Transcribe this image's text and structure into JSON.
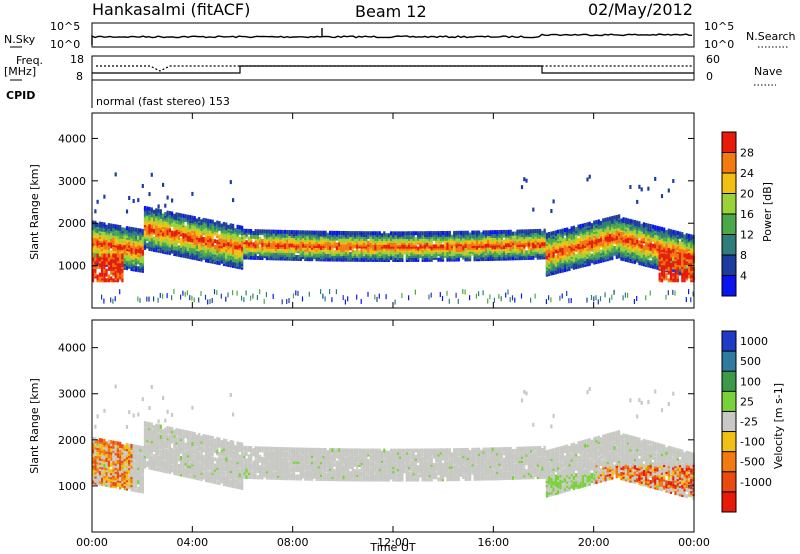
{
  "header": {
    "station": "Hankasalmi (fitACF)",
    "beam": "Beam 12",
    "date": "02/May/2012"
  },
  "params": {
    "nsky_label": "N.Sky",
    "nsky_ticks": [
      "10^5",
      "10^0"
    ],
    "nsearch_label": "N.Search",
    "nsearch_ticks": [
      "10^5",
      "10^0"
    ],
    "freq_label_1": "Freq.",
    "freq_label_2": "[MHz]",
    "freq_ticks": [
      "18",
      "8"
    ],
    "nave_label": "Nave",
    "nave_ticks": [
      "60",
      "0"
    ],
    "cpid_label": "CPID",
    "cpid_value": "normal (fast stereo) 153"
  },
  "chart_data": [
    {
      "type": "heatmap",
      "name": "power",
      "ylabel": "Slant Range [km]",
      "xlabel": "",
      "ylim": [
        0,
        4600
      ],
      "yticks": [
        "1000",
        "2000",
        "3000",
        "4000"
      ],
      "xlim_hours": [
        0,
        24
      ],
      "colorbar": {
        "label": "Power [dB]",
        "range": [
          0,
          32
        ],
        "ticks": [
          "4",
          "8",
          "12",
          "16",
          "20",
          "24",
          "28"
        ],
        "colors": [
          "#0a14f0",
          "#1e3ca0",
          "#2e7d7a",
          "#4aa84a",
          "#9ad23a",
          "#f2c012",
          "#f27a10",
          "#e81a0a"
        ]
      }
    },
    {
      "type": "heatmap",
      "name": "velocity",
      "ylabel": "Slant Range [km]",
      "xlabel": "Time UT",
      "ylim": [
        0,
        4600
      ],
      "yticks": [
        "1000",
        "2000",
        "3000",
        "4000"
      ],
      "xlim_hours": [
        0,
        24
      ],
      "xticks": [
        "00:00",
        "04:00",
        "08:00",
        "12:00",
        "16:00",
        "20:00",
        "00:00"
      ],
      "colorbar": {
        "label": "Velocity [m s-1]",
        "ticks": [
          "1000",
          "500",
          "100",
          "25",
          "-25",
          "-100",
          "-500",
          "-1000"
        ],
        "colors": [
          "#1e3cc8",
          "#2e7aa0",
          "#3a9a4a",
          "#7ad23a",
          "#c8c8c4",
          "#f2c012",
          "#f27a10",
          "#e84a10",
          "#e81a0a"
        ]
      }
    }
  ]
}
